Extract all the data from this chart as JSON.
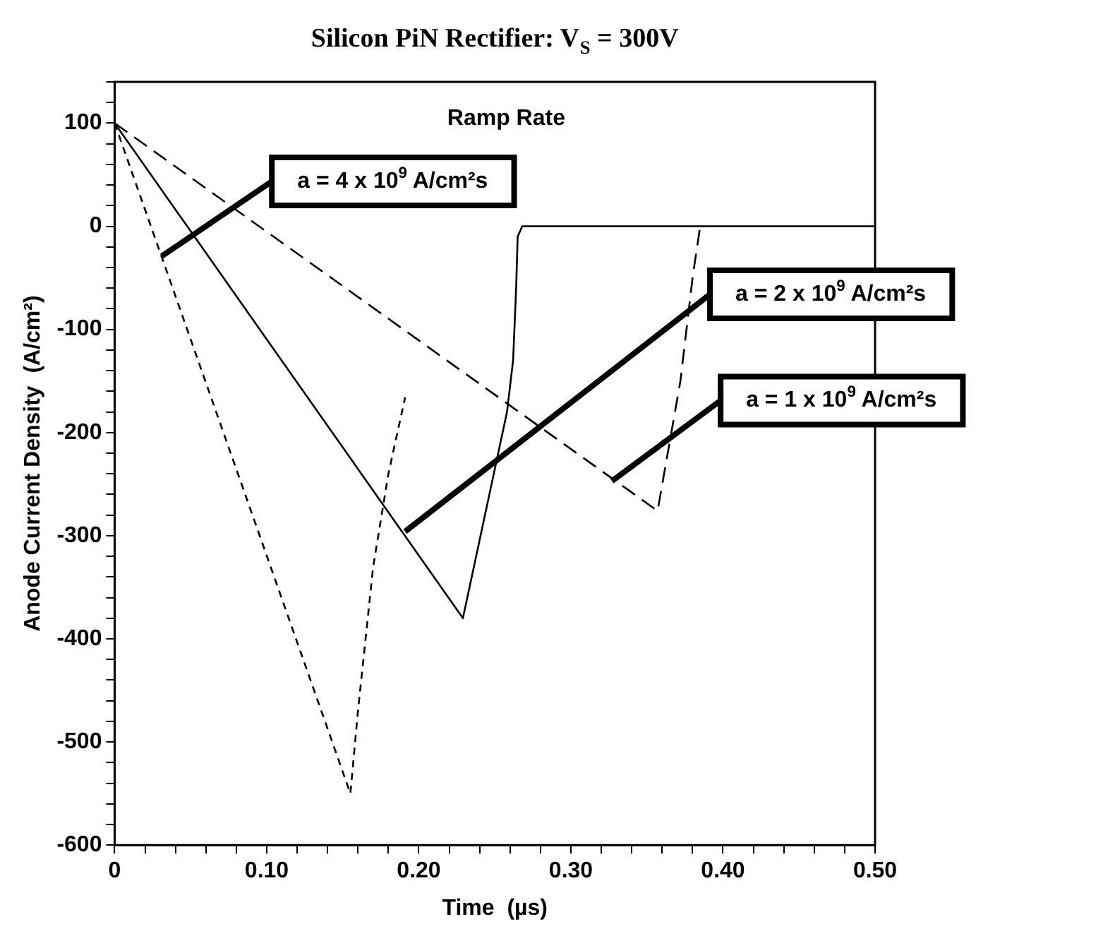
{
  "chart_data": {
    "type": "line",
    "title": "Silicon PiN Rectifier: V$_{S}$ = 300V",
    "xlabel": "Time  (µs)",
    "ylabel": "Anode Current Density  (A/cm²)",
    "series": [
      {
        "line_style": "dotted",
        "color": "#000000",
        "x": [
          0,
          0.155,
          0.16,
          0.17,
          0.18,
          0.191
        ],
        "values": [
          100,
          -550,
          -470,
          -330,
          -240,
          -166
        ]
      },
      {
        "line_style": "solid",
        "color": "#000000",
        "x": [
          0,
          0.229,
          0.258,
          0.262,
          0.264,
          0.265,
          0.268,
          0.5
        ],
        "values": [
          100,
          -380,
          -180,
          -130,
          -60,
          -10,
          0,
          0
        ]
      },
      {
        "line_style": "dashed",
        "color": "#000000",
        "x": [
          0,
          0.357,
          0.372,
          0.38,
          0.385
        ],
        "values": [
          100,
          -276,
          -150,
          -50,
          0
        ]
      }
    ],
    "annotations": [
      "Ramp Rate",
      {
        "text": "a = 4 x 10$^{9}$ A/cm²s",
        "x": 0.031,
        "y": -29
      },
      {
        "text": "a = 2 x 10$^{9}$ A/cm²s",
        "x": 0.191,
        "y": -296
      },
      {
        "text": "a = 1 x 10$^{9}$ A/cm²s",
        "x": 0.327,
        "y": -247
      }
    ],
    "xlim": [
      0,
      0.5
    ],
    "xticks": [
      0,
      {
        "value": 0.02,
        "label": null
      },
      {
        "value": 0.04,
        "label": null
      },
      {
        "value": 0.06,
        "label": null
      },
      {
        "value": 0.08,
        "label": null
      },
      {
        "value": 0.1,
        "label": "0.10"
      },
      {
        "value": 0.12,
        "label": null
      },
      {
        "value": 0.14,
        "label": null
      },
      {
        "value": 0.16,
        "label": null
      },
      {
        "value": 0.18,
        "label": null
      },
      {
        "value": 0.2,
        "label": "0.20"
      },
      {
        "value": 0.22,
        "label": null
      },
      {
        "value": 0.24,
        "label": null
      },
      {
        "value": 0.26,
        "label": null
      },
      {
        "value": 0.28,
        "label": null
      },
      {
        "value": 0.3,
        "label": "0.30"
      },
      {
        "value": 0.32,
        "label": null
      },
      {
        "value": 0.34,
        "label": null
      },
      {
        "value": 0.36,
        "label": null
      },
      {
        "value": 0.38,
        "label": null
      },
      {
        "value": 0.4,
        "label": "0.40"
      },
      {
        "value": 0.42,
        "label": null
      },
      {
        "value": 0.44,
        "label": null
      },
      {
        "value": 0.46,
        "label": null
      },
      {
        "value": 0.48,
        "label": null
      },
      {
        "value": 0.5,
        "label": "0.50"
      }
    ],
    "ylim": [
      -600,
      140
    ],
    "yticks": [
      -600,
      {
        "value": -580,
        "label": null
      },
      {
        "value": -560,
        "label": null
      },
      {
        "value": -540,
        "label": null
      },
      {
        "value": -520,
        "label": null
      },
      -500,
      {
        "value": -480,
        "label": null
      },
      {
        "value": -460,
        "label": null
      },
      {
        "value": -440,
        "label": null
      },
      {
        "value": -420,
        "label": null
      },
      -400,
      {
        "value": -380,
        "label": null
      },
      {
        "value": -360,
        "label": null
      },
      {
        "value": -340,
        "label": null
      },
      {
        "value": -320,
        "label": null
      },
      -300,
      {
        "value": -280,
        "label": null
      },
      {
        "value": -260,
        "label": null
      },
      {
        "value": -240,
        "label": null
      },
      {
        "value": -220,
        "label": null
      },
      -200,
      {
        "value": -180,
        "label": null
      },
      {
        "value": -160,
        "label": null
      },
      {
        "value": -140,
        "label": null
      },
      {
        "value": -120,
        "label": null
      },
      -100,
      {
        "value": -80,
        "label": null
      },
      {
        "value": -60,
        "label": null
      },
      {
        "value": -40,
        "label": null
      },
      {
        "value": -20,
        "label": null
      },
      0,
      {
        "value": 20,
        "label": null
      },
      {
        "value": 40,
        "label": null
      },
      {
        "value": 60,
        "label": null
      },
      {
        "value": 80,
        "label": null
      },
      100,
      {
        "value": 120,
        "label": null
      },
      {
        "value": 140,
        "label": null
      }
    ]
  }
}
